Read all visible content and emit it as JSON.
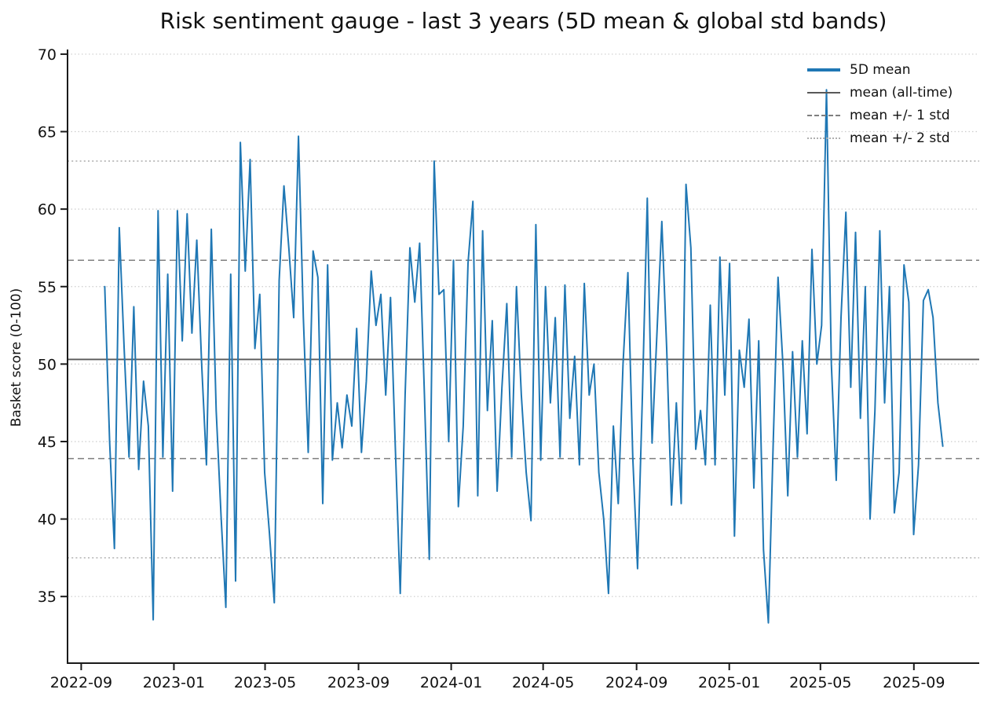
{
  "figure": {
    "background": "#ffffff"
  },
  "chart_data": {
    "type": "line",
    "title": "Risk sentiment gauge - last 3 years (5D mean & global std bands)",
    "xlabel": "",
    "ylabel": "Basket score (0-100)",
    "grid": {
      "axis": "y",
      "style": "dotted",
      "color": "#cccccc"
    },
    "y_axis": {
      "min": 30.7,
      "max": 70.3,
      "ticks": [
        35,
        40,
        45,
        50,
        55,
        60,
        65,
        70
      ]
    },
    "x_axis": {
      "epoch": "2022-09-01",
      "min_day": -18,
      "max_day": 1182,
      "ticks": [
        {
          "label": "2022-09",
          "day": 0
        },
        {
          "label": "2023-01",
          "day": 122
        },
        {
          "label": "2023-05",
          "day": 242
        },
        {
          "label": "2023-09",
          "day": 365
        },
        {
          "label": "2024-01",
          "day": 487
        },
        {
          "label": "2024-05",
          "day": 608
        },
        {
          "label": "2024-09",
          "day": 731
        },
        {
          "label": "2025-01",
          "day": 853
        },
        {
          "label": "2025-05",
          "day": 973
        },
        {
          "label": "2025-09",
          "day": 1096
        }
      ]
    },
    "stat_lines": [
      {
        "name": "mean (all-time)",
        "value": 50.3,
        "style": "solid",
        "color": "#595959",
        "width": 1.8
      },
      {
        "name": "mean + 1 std",
        "value": 56.7,
        "style": "dashed",
        "color": "#7f7f7f",
        "width": 1.5
      },
      {
        "name": "mean - 1 std",
        "value": 43.9,
        "style": "dashed",
        "color": "#7f7f7f",
        "width": 1.5
      },
      {
        "name": "mean + 2 std",
        "value": 63.1,
        "style": "dotted",
        "color": "#ababab",
        "width": 1.4
      },
      {
        "name": "mean - 2 std",
        "value": 37.5,
        "style": "dotted",
        "color": "#ababab",
        "width": 1.4
      }
    ],
    "series": [
      {
        "name": "5D mean",
        "color": "#1f77b4",
        "line_width": 2,
        "start_day": 31,
        "end_day": 1134,
        "start_date": "2022-10-02",
        "end_date": "2025-10-10",
        "values": [
          55.0,
          45.0,
          38.1,
          58.8,
          51.0,
          44.0,
          53.7,
          43.2,
          48.9,
          46.0,
          33.5,
          59.9,
          44.0,
          55.8,
          41.8,
          59.9,
          51.5,
          59.7,
          52.0,
          58.0,
          50.0,
          43.5,
          58.7,
          47.0,
          40.2,
          34.3,
          55.8,
          36.0,
          64.3,
          56.0,
          63.2,
          51.0,
          54.5,
          43.0,
          39.1,
          34.6,
          55.4,
          61.5,
          57.5,
          53.0,
          64.7,
          53.0,
          44.3,
          57.3,
          55.6,
          41.0,
          56.4,
          43.8,
          47.5,
          44.6,
          48.0,
          46.0,
          52.3,
          44.3,
          48.9,
          56.0,
          52.5,
          54.5,
          48.0,
          54.3,
          44.5,
          35.2,
          48.0,
          57.5,
          54.0,
          57.8,
          48.0,
          37.4,
          63.1,
          54.5,
          54.8,
          45.0,
          56.7,
          40.8,
          46.0,
          56.5,
          60.5,
          41.5,
          58.6,
          47.0,
          52.8,
          41.8,
          48.5,
          53.9,
          44.0,
          55.0,
          48.0,
          43.0,
          39.9,
          59.0,
          43.8,
          55.0,
          47.5,
          53.0,
          44.0,
          55.1,
          46.5,
          50.5,
          43.5,
          55.2,
          48.0,
          50.0,
          43.0,
          40.0,
          35.2,
          46.0,
          41.0,
          50.0,
          55.9,
          44.0,
          36.8,
          48.0,
          60.7,
          44.9,
          52.0,
          59.2,
          51.0,
          40.9,
          47.5,
          41.0,
          61.6,
          57.5,
          44.5,
          47.0,
          43.5,
          53.8,
          43.5,
          56.9,
          48.0,
          56.5,
          38.9,
          50.9,
          48.5,
          52.9,
          42.0,
          51.5,
          38.0,
          33.3,
          45.0,
          55.6,
          50.0,
          41.5,
          50.8,
          44.0,
          51.5,
          45.5,
          57.4,
          50.0,
          52.5,
          67.7,
          50.0,
          42.5,
          53.0,
          59.8,
          48.5,
          58.5,
          46.5,
          55.0,
          40.0,
          47.0,
          58.6,
          47.5,
          55.0,
          40.4,
          43.0,
          56.4,
          54.0,
          39.0,
          43.5,
          54.1,
          54.8,
          53.0,
          47.5,
          44.7
        ]
      }
    ],
    "legend": {
      "position": "upper right",
      "frame": false,
      "items": [
        {
          "label": "5D mean",
          "type": "series"
        },
        {
          "label": "mean (all-time)",
          "type": "mean"
        },
        {
          "label": "mean +/- 1 std",
          "type": "std1"
        },
        {
          "label": "mean +/- 2 std",
          "type": "std2"
        }
      ]
    }
  }
}
